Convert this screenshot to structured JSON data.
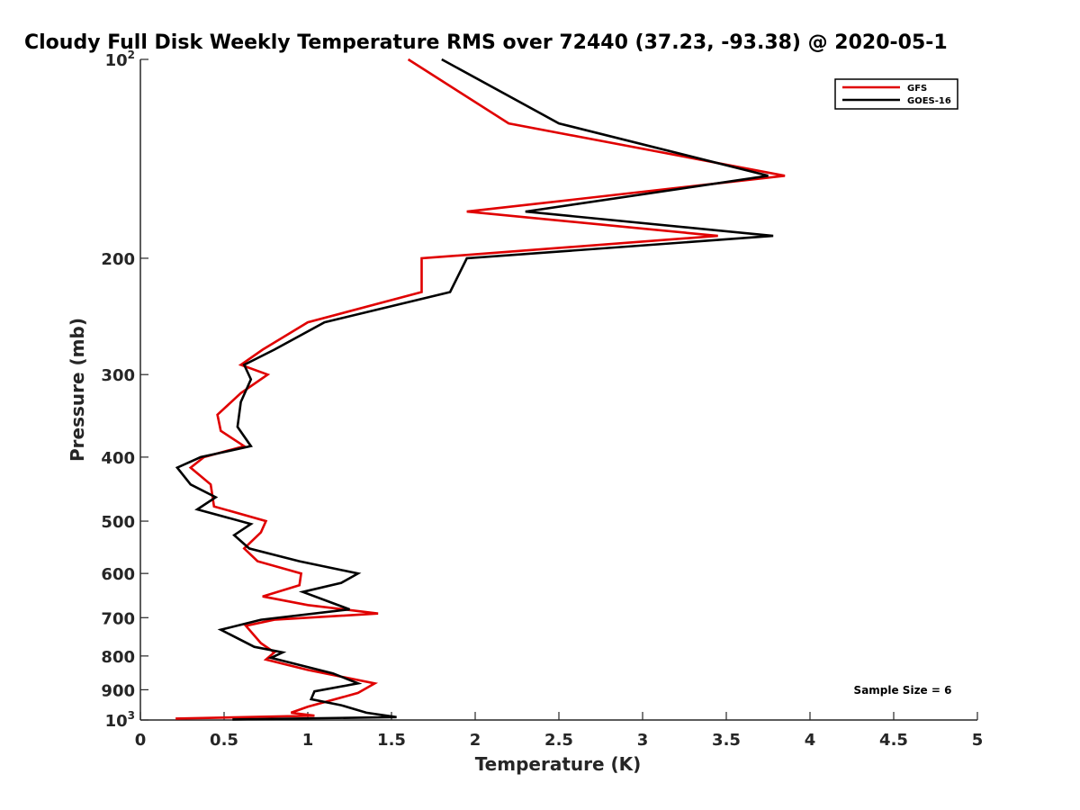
{
  "chart_data": {
    "type": "line",
    "title": "Cloudy Full Disk Weekly Temperature RMS over 72440 (37.23, -93.38) @ 2020-05-1",
    "xlabel": "Temperature (K)",
    "ylabel": "Pressure (mb)",
    "xlim": [
      0,
      5
    ],
    "ylim": [
      100,
      1000
    ],
    "y_scale": "log",
    "y_reversed": true,
    "grid": false,
    "x_ticks": [
      {
        "value": 0,
        "label": "0"
      },
      {
        "value": 0.5,
        "label": "0.5"
      },
      {
        "value": 1,
        "label": "1"
      },
      {
        "value": 1.5,
        "label": "1.5"
      },
      {
        "value": 2,
        "label": "2"
      },
      {
        "value": 2.5,
        "label": "2.5"
      },
      {
        "value": 3,
        "label": "3"
      },
      {
        "value": 3.5,
        "label": "3.5"
      },
      {
        "value": 4,
        "label": "4"
      },
      {
        "value": 4.5,
        "label": "4.5"
      },
      {
        "value": 5,
        "label": "5"
      }
    ],
    "y_ticks": [
      {
        "value": 100,
        "label": "10",
        "sup": "2"
      },
      {
        "value": 200,
        "label": "200"
      },
      {
        "value": 300,
        "label": "300"
      },
      {
        "value": 400,
        "label": "400"
      },
      {
        "value": 500,
        "label": "500"
      },
      {
        "value": 600,
        "label": "600"
      },
      {
        "value": 700,
        "label": "700"
      },
      {
        "value": 800,
        "label": "800"
      },
      {
        "value": 900,
        "label": "900"
      },
      {
        "value": 1000,
        "label": "10",
        "sup": "3"
      }
    ],
    "legend_position": "top-right",
    "annotation": "Sample Size = 6",
    "series": [
      {
        "name": "GFS",
        "color": "#e00000",
        "points": [
          [
            1.6,
            100
          ],
          [
            2.2,
            125
          ],
          [
            3.85,
            150
          ],
          [
            1.95,
            170
          ],
          [
            3.45,
            185
          ],
          [
            1.68,
            200
          ],
          [
            1.68,
            225
          ],
          [
            1.0,
            250
          ],
          [
            0.73,
            275
          ],
          [
            0.6,
            290
          ],
          [
            0.76,
            300
          ],
          [
            0.6,
            320
          ],
          [
            0.46,
            345
          ],
          [
            0.48,
            365
          ],
          [
            0.62,
            385
          ],
          [
            0.38,
            400
          ],
          [
            0.3,
            415
          ],
          [
            0.42,
            440
          ],
          [
            0.44,
            475
          ],
          [
            0.75,
            500
          ],
          [
            0.72,
            520
          ],
          [
            0.62,
            550
          ],
          [
            0.7,
            575
          ],
          [
            0.96,
            600
          ],
          [
            0.95,
            625
          ],
          [
            0.73,
            650
          ],
          [
            1.0,
            670
          ],
          [
            1.42,
            690
          ],
          [
            0.8,
            705
          ],
          [
            0.63,
            720
          ],
          [
            0.72,
            765
          ],
          [
            0.8,
            790
          ],
          [
            0.75,
            810
          ],
          [
            1.0,
            840
          ],
          [
            1.4,
            880
          ],
          [
            1.3,
            910
          ],
          [
            1.0,
            955
          ],
          [
            0.9,
            975
          ],
          [
            1.04,
            985
          ],
          [
            0.21,
            995
          ]
        ]
      },
      {
        "name": "GOES-16",
        "color": "#000000",
        "points": [
          [
            1.8,
            100
          ],
          [
            2.5,
            125
          ],
          [
            3.75,
            150
          ],
          [
            2.3,
            170
          ],
          [
            3.78,
            185
          ],
          [
            1.95,
            200
          ],
          [
            1.85,
            225
          ],
          [
            1.1,
            250
          ],
          [
            0.8,
            275
          ],
          [
            0.62,
            290
          ],
          [
            0.66,
            305
          ],
          [
            0.6,
            330
          ],
          [
            0.58,
            360
          ],
          [
            0.66,
            385
          ],
          [
            0.36,
            400
          ],
          [
            0.22,
            415
          ],
          [
            0.3,
            440
          ],
          [
            0.45,
            460
          ],
          [
            0.34,
            480
          ],
          [
            0.66,
            505
          ],
          [
            0.56,
            525
          ],
          [
            0.65,
            550
          ],
          [
            0.95,
            575
          ],
          [
            1.3,
            600
          ],
          [
            1.2,
            620
          ],
          [
            0.97,
            640
          ],
          [
            1.25,
            680
          ],
          [
            0.72,
            705
          ],
          [
            0.48,
            730
          ],
          [
            0.68,
            775
          ],
          [
            0.85,
            790
          ],
          [
            0.78,
            805
          ],
          [
            1.15,
            850
          ],
          [
            1.3,
            880
          ],
          [
            1.04,
            905
          ],
          [
            1.02,
            930
          ],
          [
            1.2,
            950
          ],
          [
            1.35,
            975
          ],
          [
            1.53,
            990
          ],
          [
            0.55,
            998
          ]
        ]
      }
    ]
  }
}
